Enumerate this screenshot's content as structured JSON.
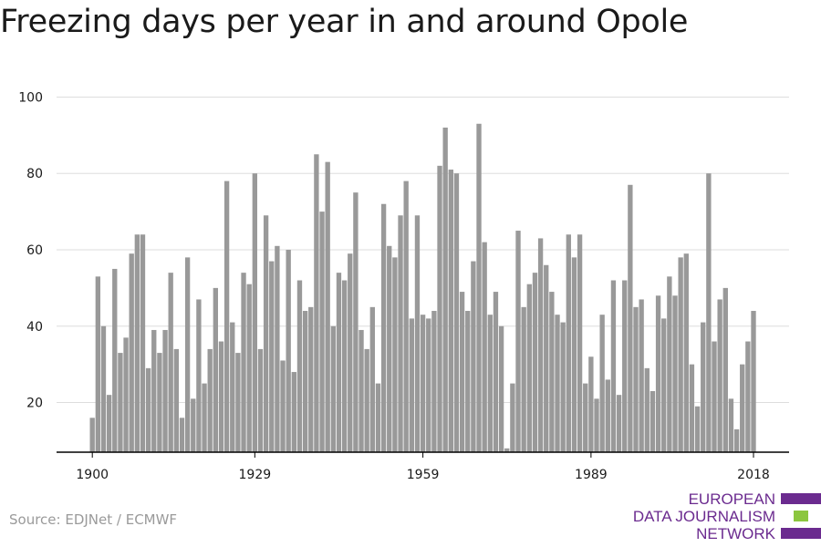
{
  "title": "Freezing days per year in and around Opole",
  "source": "Source: EDJNet / ECMWF",
  "logo": {
    "line1": "EUROPEAN",
    "line2": "DATA JOURNALISM",
    "line3": "NETWORK",
    "colors": {
      "purple": "#6b2b8f",
      "green": "#8cc63f"
    }
  },
  "colors": {
    "bar": "#999999",
    "grid": "#dddddd",
    "axis": "#000000",
    "text": "#1a1a1a"
  },
  "chart_data": {
    "type": "bar",
    "x": [
      1900,
      1901,
      1902,
      1903,
      1904,
      1905,
      1906,
      1907,
      1908,
      1909,
      1910,
      1911,
      1912,
      1913,
      1914,
      1915,
      1916,
      1917,
      1918,
      1919,
      1920,
      1921,
      1922,
      1923,
      1924,
      1925,
      1926,
      1927,
      1928,
      1929,
      1930,
      1931,
      1932,
      1933,
      1934,
      1935,
      1936,
      1937,
      1938,
      1939,
      1940,
      1941,
      1942,
      1943,
      1944,
      1945,
      1946,
      1947,
      1948,
      1949,
      1950,
      1951,
      1952,
      1953,
      1954,
      1955,
      1956,
      1957,
      1958,
      1959,
      1960,
      1961,
      1962,
      1963,
      1964,
      1965,
      1966,
      1967,
      1968,
      1969,
      1970,
      1971,
      1972,
      1973,
      1974,
      1975,
      1976,
      1977,
      1978,
      1979,
      1980,
      1981,
      1982,
      1983,
      1984,
      1985,
      1986,
      1987,
      1988,
      1989,
      1990,
      1991,
      1992,
      1993,
      1994,
      1995,
      1996,
      1997,
      1998,
      1999,
      2000,
      2001,
      2002,
      2003,
      2004,
      2005,
      2006,
      2007,
      2008,
      2009,
      2010,
      2011,
      2012,
      2013,
      2014,
      2015,
      2016,
      2017,
      2018
    ],
    "values": [
      16,
      53,
      40,
      22,
      55,
      33,
      37,
      59,
      64,
      64,
      29,
      39,
      33,
      39,
      54,
      34,
      16,
      58,
      21,
      47,
      25,
      34,
      50,
      36,
      78,
      41,
      33,
      54,
      51,
      80,
      34,
      69,
      57,
      61,
      31,
      60,
      28,
      52,
      44,
      45,
      85,
      70,
      83,
      40,
      54,
      52,
      59,
      75,
      39,
      34,
      45,
      25,
      72,
      61,
      58,
      69,
      78,
      42,
      69,
      43,
      42,
      44,
      82,
      92,
      81,
      80,
      49,
      44,
      57,
      93,
      62,
      43,
      49,
      40,
      8,
      25,
      65,
      45,
      51,
      54,
      63,
      56,
      49,
      43,
      41,
      64,
      58,
      64,
      25,
      32,
      21,
      43,
      26,
      52,
      22,
      52,
      77,
      45,
      47,
      29,
      23,
      48,
      42,
      53,
      48,
      58,
      59,
      30,
      19,
      41,
      80,
      36,
      47,
      50,
      21,
      13,
      30,
      36,
      44
    ],
    "xticks": [
      1900,
      1929,
      1959,
      1989,
      2018
    ],
    "xtick_labels": [
      "1900",
      "1929",
      "1959",
      "1989",
      "2018"
    ],
    "yticks": [
      20,
      40,
      60,
      80,
      100
    ],
    "ytick_labels": [
      "20",
      "40",
      "60",
      "80",
      "100"
    ],
    "ylim": [
      7,
      100
    ],
    "xlim": [
      1900,
      2018
    ],
    "grid": true
  }
}
